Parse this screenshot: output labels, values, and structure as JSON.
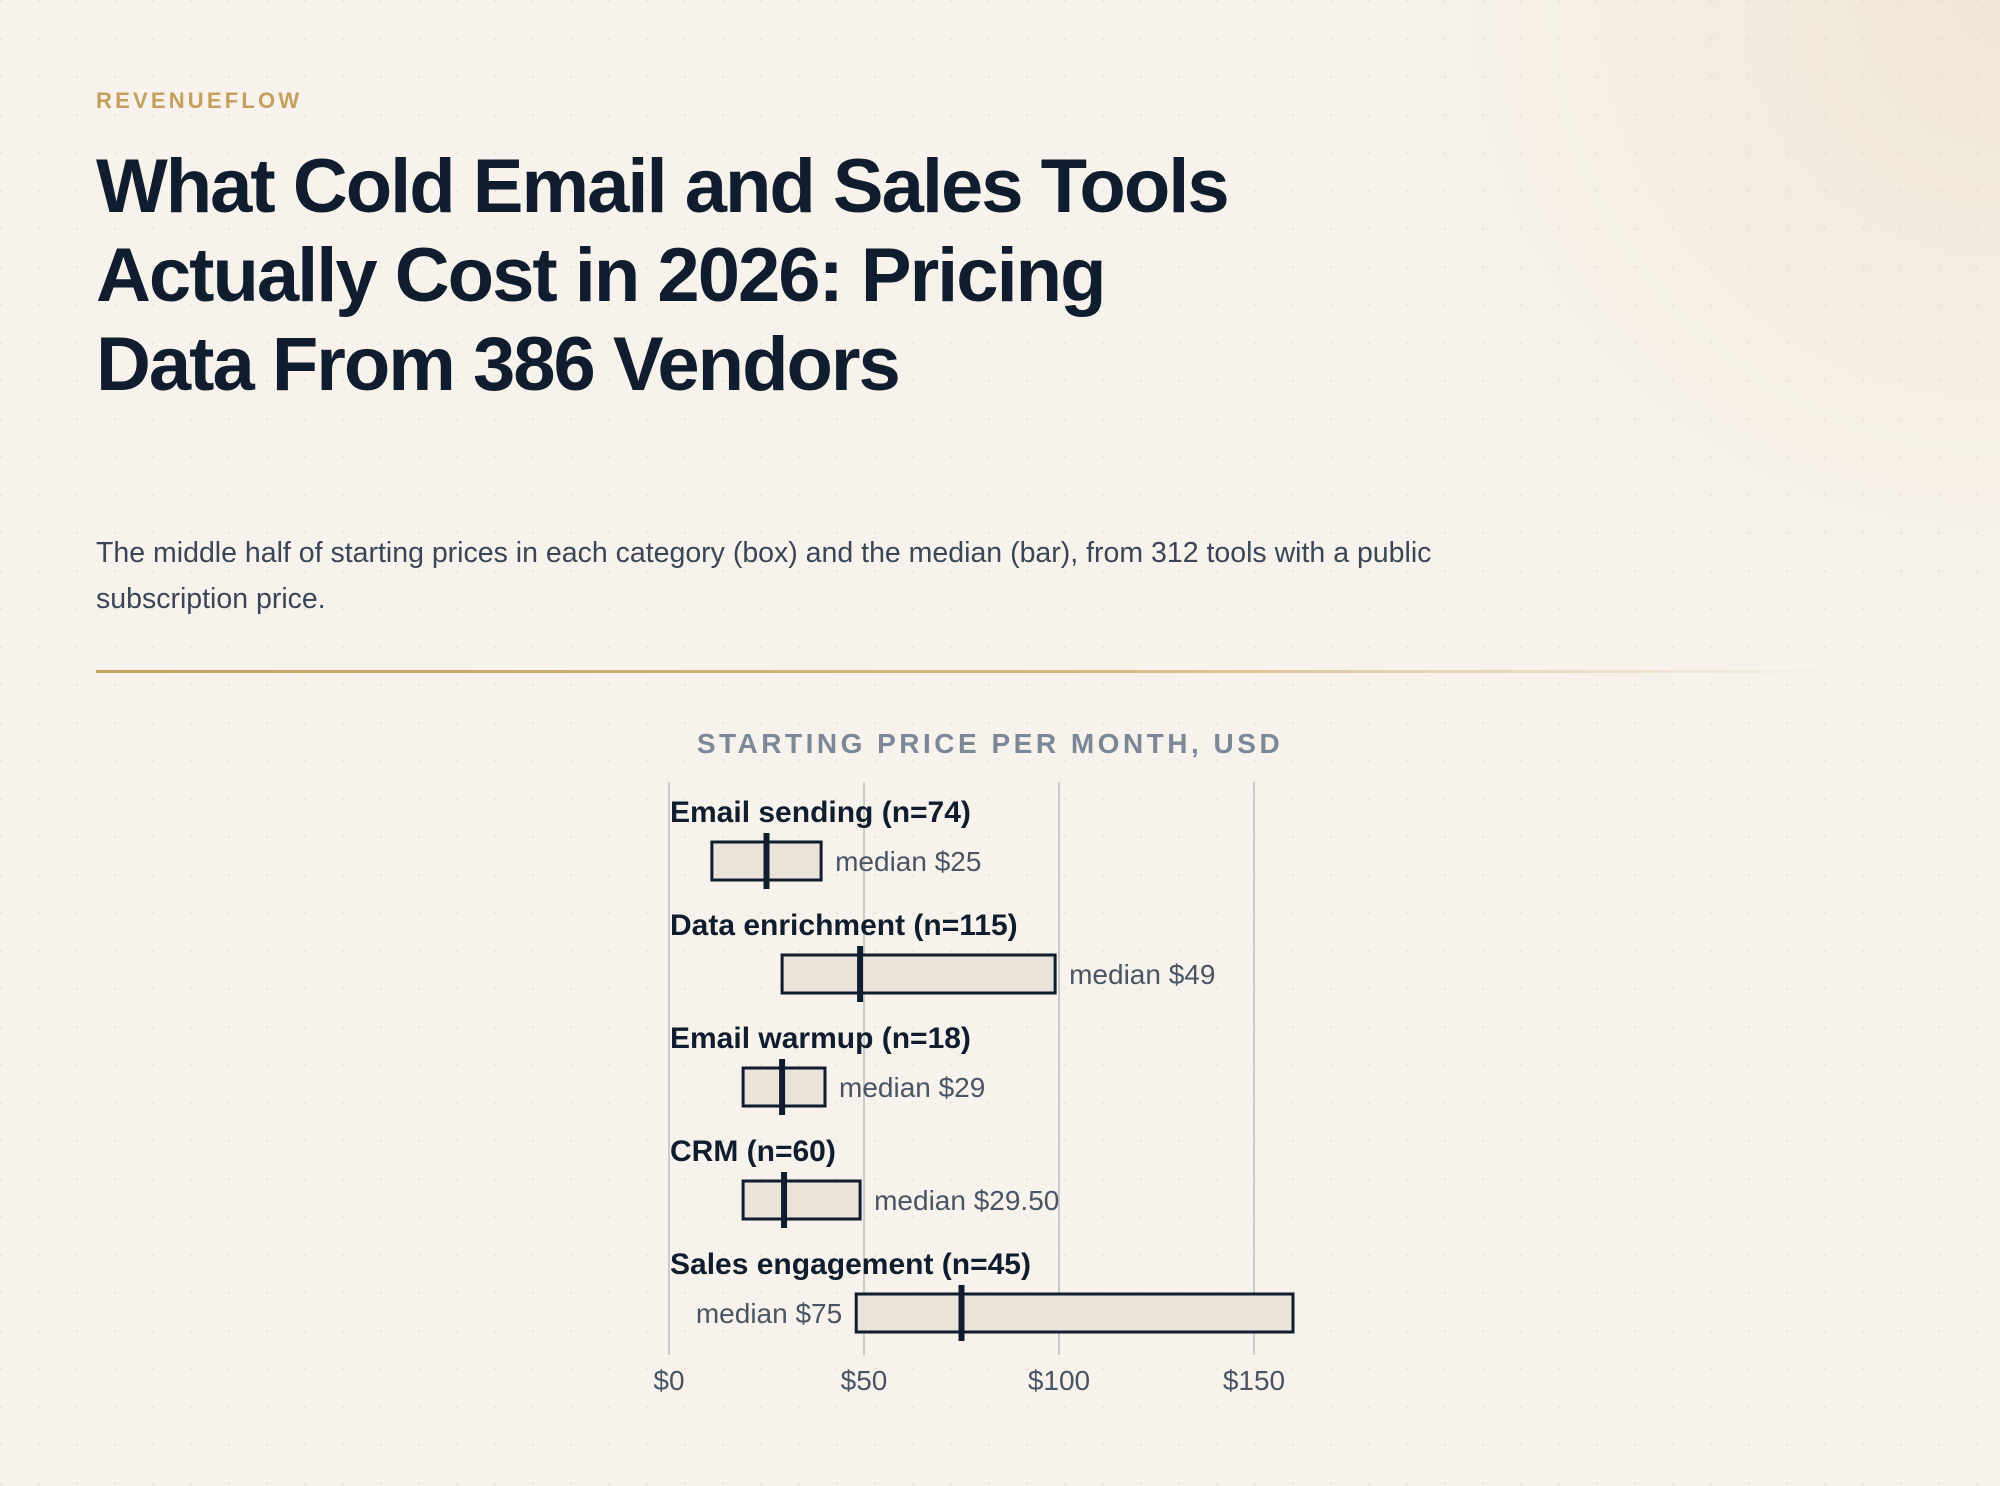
{
  "brand": "REVENUEFLOW",
  "title": "What Cold Email and Sales Tools Actually Cost in 2026: Pricing Data From 386 Vendors",
  "subtitle": "The middle half of starting prices in each category (box) and the median (bar), from 312 tools with a public subscription price.",
  "colors": {
    "background": "#f7f3ec",
    "accent": "#c4a05c",
    "ink": "#0f1d2e",
    "box_fill": "#ebe3da",
    "gridline": "#c9ccc8"
  },
  "chart_data": {
    "type": "box",
    "title": "STARTING PRICE PER MONTH, USD",
    "x_domain": [
      0,
      160
    ],
    "x_ticks": [
      0,
      50,
      100,
      150
    ],
    "x_tick_labels": [
      "$0",
      "$50",
      "$100",
      "$150"
    ],
    "grid": true,
    "categories": [
      {
        "label": "Email sending (n=74)",
        "q1": 11,
        "median": 25,
        "q3": 39,
        "median_label": "median $25",
        "label_side": "right"
      },
      {
        "label": "Data enrichment (n=115)",
        "q1": 29,
        "median": 49,
        "q3": 99,
        "median_label": "median $49",
        "label_side": "right"
      },
      {
        "label": "Email warmup (n=18)",
        "q1": 19,
        "median": 29,
        "q3": 40,
        "median_label": "median $29",
        "label_side": "right"
      },
      {
        "label": "CRM (n=60)",
        "q1": 19,
        "median": 29.5,
        "q3": 49,
        "median_label": "median $29.50",
        "label_side": "right"
      },
      {
        "label": "Sales engagement (n=45)",
        "q1": 48,
        "median": 75,
        "q3": 160,
        "median_label": "median $75",
        "label_side": "left"
      }
    ]
  }
}
